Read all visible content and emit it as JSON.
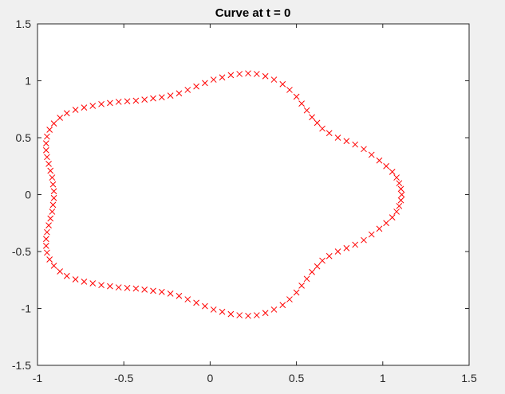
{
  "chart_data": {
    "type": "scatter",
    "title": "Curve at t = 0",
    "xlabel": "",
    "ylabel": "",
    "xlim": [
      -1,
      1.5
    ],
    "ylim": [
      -1.5,
      1.5
    ],
    "xticks": [
      "-1",
      "-0.5",
      "0",
      "0.5",
      "1",
      "1.5"
    ],
    "yticks": [
      "1.5",
      "1",
      "0.5",
      "0",
      "-0.5",
      "-1",
      "-1.5"
    ],
    "grid": false,
    "legend": "none",
    "marker": "x",
    "marker_color": "#ff0000",
    "background_color": "#ffffff",
    "figure_color": "#f0f0f0",
    "axis_color": "#262626",
    "series": [
      {
        "curve": "closed",
        "values": [
          [
            1.11,
            0.0
          ],
          [
            1.105,
            0.05
          ],
          [
            1.095,
            0.1
          ],
          [
            1.08,
            0.15
          ],
          [
            1.055,
            0.2
          ],
          [
            1.02,
            0.25
          ],
          [
            0.98,
            0.3
          ],
          [
            0.935,
            0.35
          ],
          [
            0.89,
            0.4
          ],
          [
            0.84,
            0.44
          ],
          [
            0.79,
            0.47
          ],
          [
            0.74,
            0.5
          ],
          [
            0.69,
            0.54
          ],
          [
            0.65,
            0.58
          ],
          [
            0.62,
            0.63
          ],
          [
            0.59,
            0.68
          ],
          [
            0.56,
            0.74
          ],
          [
            0.53,
            0.8
          ],
          [
            0.5,
            0.86
          ],
          [
            0.46,
            0.92
          ],
          [
            0.42,
            0.97
          ],
          [
            0.37,
            1.01
          ],
          [
            0.32,
            1.04
          ],
          [
            0.27,
            1.06
          ],
          [
            0.22,
            1.065
          ],
          [
            0.17,
            1.06
          ],
          [
            0.12,
            1.05
          ],
          [
            0.07,
            1.03
          ],
          [
            0.02,
            1.01
          ],
          [
            -0.03,
            0.98
          ],
          [
            -0.08,
            0.95
          ],
          [
            -0.13,
            0.92
          ],
          [
            -0.18,
            0.89
          ],
          [
            -0.23,
            0.87
          ],
          [
            -0.28,
            0.855
          ],
          [
            -0.33,
            0.845
          ],
          [
            -0.38,
            0.835
          ],
          [
            -0.43,
            0.825
          ],
          [
            -0.48,
            0.82
          ],
          [
            -0.53,
            0.815
          ],
          [
            -0.58,
            0.805
          ],
          [
            -0.63,
            0.795
          ],
          [
            -0.68,
            0.78
          ],
          [
            -0.73,
            0.765
          ],
          [
            -0.78,
            0.745
          ],
          [
            -0.83,
            0.715
          ],
          [
            -0.87,
            0.675
          ],
          [
            -0.905,
            0.625
          ],
          [
            -0.93,
            0.57
          ],
          [
            -0.945,
            0.51
          ],
          [
            -0.95,
            0.45
          ],
          [
            -0.95,
            0.39
          ],
          [
            -0.945,
            0.33
          ],
          [
            -0.935,
            0.27
          ],
          [
            -0.925,
            0.21
          ],
          [
            -0.915,
            0.15
          ],
          [
            -0.91,
            0.09
          ],
          [
            -0.905,
            0.03
          ],
          [
            -0.905,
            -0.03
          ],
          [
            -0.91,
            -0.09
          ],
          [
            -0.915,
            -0.15
          ],
          [
            -0.925,
            -0.21
          ],
          [
            -0.935,
            -0.27
          ],
          [
            -0.945,
            -0.33
          ],
          [
            -0.95,
            -0.39
          ],
          [
            -0.95,
            -0.45
          ],
          [
            -0.945,
            -0.51
          ],
          [
            -0.93,
            -0.57
          ],
          [
            -0.905,
            -0.625
          ],
          [
            -0.87,
            -0.675
          ],
          [
            -0.83,
            -0.715
          ],
          [
            -0.78,
            -0.745
          ],
          [
            -0.73,
            -0.765
          ],
          [
            -0.68,
            -0.78
          ],
          [
            -0.63,
            -0.795
          ],
          [
            -0.58,
            -0.805
          ],
          [
            -0.53,
            -0.815
          ],
          [
            -0.48,
            -0.82
          ],
          [
            -0.43,
            -0.825
          ],
          [
            -0.38,
            -0.835
          ],
          [
            -0.33,
            -0.845
          ],
          [
            -0.28,
            -0.855
          ],
          [
            -0.23,
            -0.87
          ],
          [
            -0.18,
            -0.89
          ],
          [
            -0.13,
            -0.92
          ],
          [
            -0.08,
            -0.95
          ],
          [
            -0.03,
            -0.98
          ],
          [
            0.02,
            -1.01
          ],
          [
            0.07,
            -1.03
          ],
          [
            0.12,
            -1.05
          ],
          [
            0.17,
            -1.06
          ],
          [
            0.22,
            -1.065
          ],
          [
            0.27,
            -1.06
          ],
          [
            0.32,
            -1.04
          ],
          [
            0.37,
            -1.01
          ],
          [
            0.42,
            -0.97
          ],
          [
            0.46,
            -0.92
          ],
          [
            0.5,
            -0.86
          ],
          [
            0.53,
            -0.8
          ],
          [
            0.56,
            -0.74
          ],
          [
            0.59,
            -0.68
          ],
          [
            0.62,
            -0.63
          ],
          [
            0.65,
            -0.58
          ],
          [
            0.69,
            -0.54
          ],
          [
            0.74,
            -0.5
          ],
          [
            0.79,
            -0.47
          ],
          [
            0.84,
            -0.44
          ],
          [
            0.89,
            -0.4
          ],
          [
            0.935,
            -0.35
          ],
          [
            0.98,
            -0.3
          ],
          [
            1.02,
            -0.25
          ],
          [
            1.055,
            -0.2
          ],
          [
            1.08,
            -0.15
          ],
          [
            1.095,
            -0.1
          ],
          [
            1.105,
            -0.05
          ]
        ]
      }
    ]
  }
}
